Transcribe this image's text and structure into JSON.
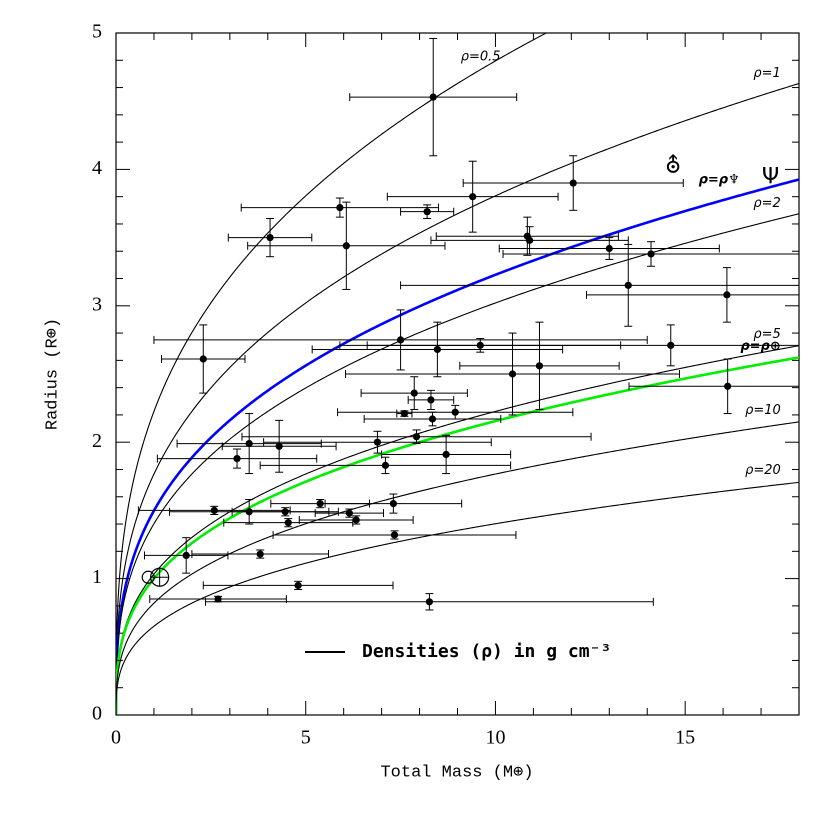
{
  "chart_data": {
    "type": "scatter",
    "xlabel": "Total Mass (M⊕)",
    "ylabel": "Radius (R⊕)",
    "xlim": [
      0,
      18
    ],
    "ylim": [
      0,
      5
    ],
    "xticks": [
      0,
      5,
      10,
      15
    ],
    "yticks": [
      0,
      1,
      2,
      3,
      4,
      5
    ],
    "xticks_minor": [
      1,
      2,
      3,
      4,
      6,
      7,
      8,
      9,
      11,
      12,
      13,
      14,
      16,
      17
    ],
    "yticks_minor": [
      0.2,
      0.4,
      0.6,
      0.8,
      1.2,
      1.4,
      1.6,
      1.8,
      2.2,
      2.4,
      2.6,
      2.8,
      3.2,
      3.4,
      3.6,
      3.8,
      4.2,
      4.4,
      4.6,
      4.8
    ],
    "legend": "Densities (ρ) in g cm⁻³",
    "points": {
      "color": "#000000",
      "x": [
        8.36,
        12.05,
        9.4,
        5.9,
        8.2,
        4.06,
        6.07,
        10.84,
        10.9,
        13.0,
        14.1,
        13.5,
        16.1,
        2.3,
        7.5,
        8.47,
        9.6,
        14.62,
        10.45,
        11.16,
        16.12,
        7.86,
        8.3,
        7.6,
        8.34,
        8.94,
        3.51,
        4.3,
        3.19,
        6.89,
        7.92,
        8.7,
        7.1,
        3.51,
        2.59,
        4.46,
        4.54,
        5.38,
        6.15,
        6.33,
        7.31,
        7.34,
        1.85,
        3.8,
        4.8,
        2.69,
        8.26
      ],
      "y": [
        4.53,
        3.9,
        3.8,
        3.72,
        3.69,
        3.5,
        3.44,
        3.51,
        3.48,
        3.42,
        3.38,
        3.15,
        3.08,
        2.61,
        2.75,
        2.68,
        2.71,
        2.71,
        2.5,
        2.56,
        2.41,
        2.36,
        2.31,
        2.21,
        2.17,
        2.22,
        1.99,
        1.97,
        1.88,
        2.0,
        2.04,
        1.91,
        1.83,
        1.49,
        1.5,
        1.49,
        1.41,
        1.55,
        1.48,
        1.43,
        1.55,
        1.32,
        1.17,
        1.18,
        0.95,
        0.85,
        0.83
      ],
      "xerr": [
        2.2,
        2.9,
        2.25,
        2.6,
        0.7,
        1.1,
        2.6,
        2.4,
        2.6,
        2.9,
        3.9,
        6.0,
        3.7,
        1.1,
        6.5,
        3.3,
        3.7,
        8.0,
        4.4,
        2.1,
        2.6,
        1.4,
        0.6,
        0.2,
        1.8,
        3.1,
        1.9,
        1.5,
        2.1,
        3.0,
        4.6,
        1.7,
        3.3,
        2.1,
        2.0,
        1.4,
        1.7,
        1.3,
        0.9,
        1.5,
        1.8,
        3.2,
        1.1,
        1.8,
        2.5,
        1.8,
        5.9
      ],
      "yerr": [
        0.43,
        0.2,
        0.26,
        0.07,
        0.05,
        0.14,
        0.32,
        0.14,
        0.1,
        0.08,
        0.09,
        0.3,
        0.2,
        0.25,
        0.22,
        0.2,
        0.05,
        0.15,
        0.3,
        0.32,
        0.2,
        0.12,
        0.07,
        0.02,
        0.05,
        0.05,
        0.22,
        0.19,
        0.07,
        0.08,
        0.05,
        0.14,
        0.06,
        0.09,
        0.03,
        0.03,
        0.03,
        0.03,
        0.03,
        0.03,
        0.07,
        0.03,
        0.13,
        0.03,
        0.03,
        0.02,
        0.06
      ]
    },
    "curves": [
      {
        "label": "ρ=0.5",
        "density": 0.5,
        "color": "#000000"
      },
      {
        "label": "ρ=1",
        "density": 1,
        "color": "#000000"
      },
      {
        "label": "ρ=ρ♆",
        "density": 1.64,
        "color": "#0000ff"
      },
      {
        "label": "ρ=2",
        "density": 2,
        "color": "#000000"
      },
      {
        "label": "ρ=5",
        "density": 5,
        "color": "#000000"
      },
      {
        "label": "ρ=ρ⊕",
        "density": 5.51,
        "color": "#00ee00"
      },
      {
        "label": "ρ=10",
        "density": 10,
        "color": "#000000"
      },
      {
        "label": "ρ=20",
        "density": 20,
        "color": "#000000"
      }
    ],
    "planets": [
      {
        "symbol": "⛢",
        "x": 14.68,
        "y": 4.02
      },
      {
        "symbol": "Ψ",
        "x": 17.25,
        "y": 3.94
      }
    ],
    "markers": [
      {
        "shape": "venus",
        "x": 0.85,
        "y": 1.01
      },
      {
        "shape": "earth",
        "x": 1.15,
        "y": 1.01
      }
    ]
  }
}
